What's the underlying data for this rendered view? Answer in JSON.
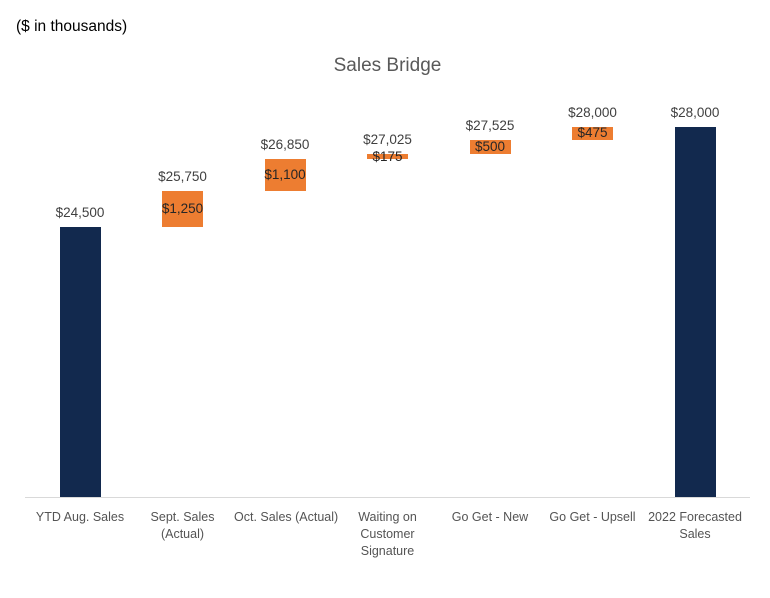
{
  "chart_data": {
    "type": "waterfall",
    "title": "Sales Bridge",
    "units_note": "($ in thousands)",
    "categories": [
      "YTD Aug. Sales",
      "Sept. Sales (Actual)",
      "Oct. Sales (Actual)",
      "Waiting on Customer Signature",
      "Go Get - New",
      "Go Get - Upsell",
      "2022 Forecasted Sales"
    ],
    "bars": [
      {
        "category": "YTD Aug. Sales",
        "category_lines": [
          "YTD Aug. Sales"
        ],
        "kind": "total",
        "start": 0,
        "end": 24500,
        "value": 24500,
        "cumulative_label": "$24,500",
        "delta_label": null
      },
      {
        "category": "Sept. Sales (Actual)",
        "category_lines": [
          "Sept. Sales",
          "(Actual)"
        ],
        "kind": "increase",
        "start": 24500,
        "end": 25750,
        "value": 1250,
        "cumulative_label": "$25,750",
        "delta_label": "$1,250"
      },
      {
        "category": "Oct. Sales (Actual)",
        "category_lines": [
          "Oct. Sales (Actual)"
        ],
        "kind": "increase",
        "start": 25750,
        "end": 26850,
        "value": 1100,
        "cumulative_label": "$26,850",
        "delta_label": "$1,100"
      },
      {
        "category": "Waiting on Customer Signature",
        "category_lines": [
          "Waiting on",
          "Customer",
          "Signature"
        ],
        "kind": "increase",
        "start": 26850,
        "end": 27025,
        "value": 175,
        "cumulative_label": "$27,025",
        "delta_label": "$175"
      },
      {
        "category": "Go Get - New",
        "category_lines": [
          "Go Get - New"
        ],
        "kind": "increase",
        "start": 27025,
        "end": 27525,
        "value": 500,
        "cumulative_label": "$27,525",
        "delta_label": "$500"
      },
      {
        "category": "Go Get - Upsell",
        "category_lines": [
          "Go Get - Upsell"
        ],
        "kind": "increase",
        "start": 27525,
        "end": 28000,
        "value": 475,
        "cumulative_label": "$28,000",
        "delta_label": "$475"
      },
      {
        "category": "2022 Forecasted Sales",
        "category_lines": [
          "2022 Forecasted",
          "Sales"
        ],
        "kind": "total",
        "start": 0,
        "end": 28000,
        "value": 28000,
        "cumulative_label": "$28,000",
        "delta_label": null
      }
    ],
    "colors": {
      "total_bar": "#12294e",
      "delta_bar": "#ed7d31",
      "title_text": "#595959",
      "axis_line": "#d9d9d9",
      "category_text": "#545454",
      "cumulative_text": "#404040",
      "delta_text": "#262626"
    },
    "layout_hints": {
      "axis_min": 15000,
      "y_axis_visible": false,
      "gridlines": false,
      "legend": false,
      "value_labels": "cumulative above each bar, delta centered on floating bars"
    }
  }
}
